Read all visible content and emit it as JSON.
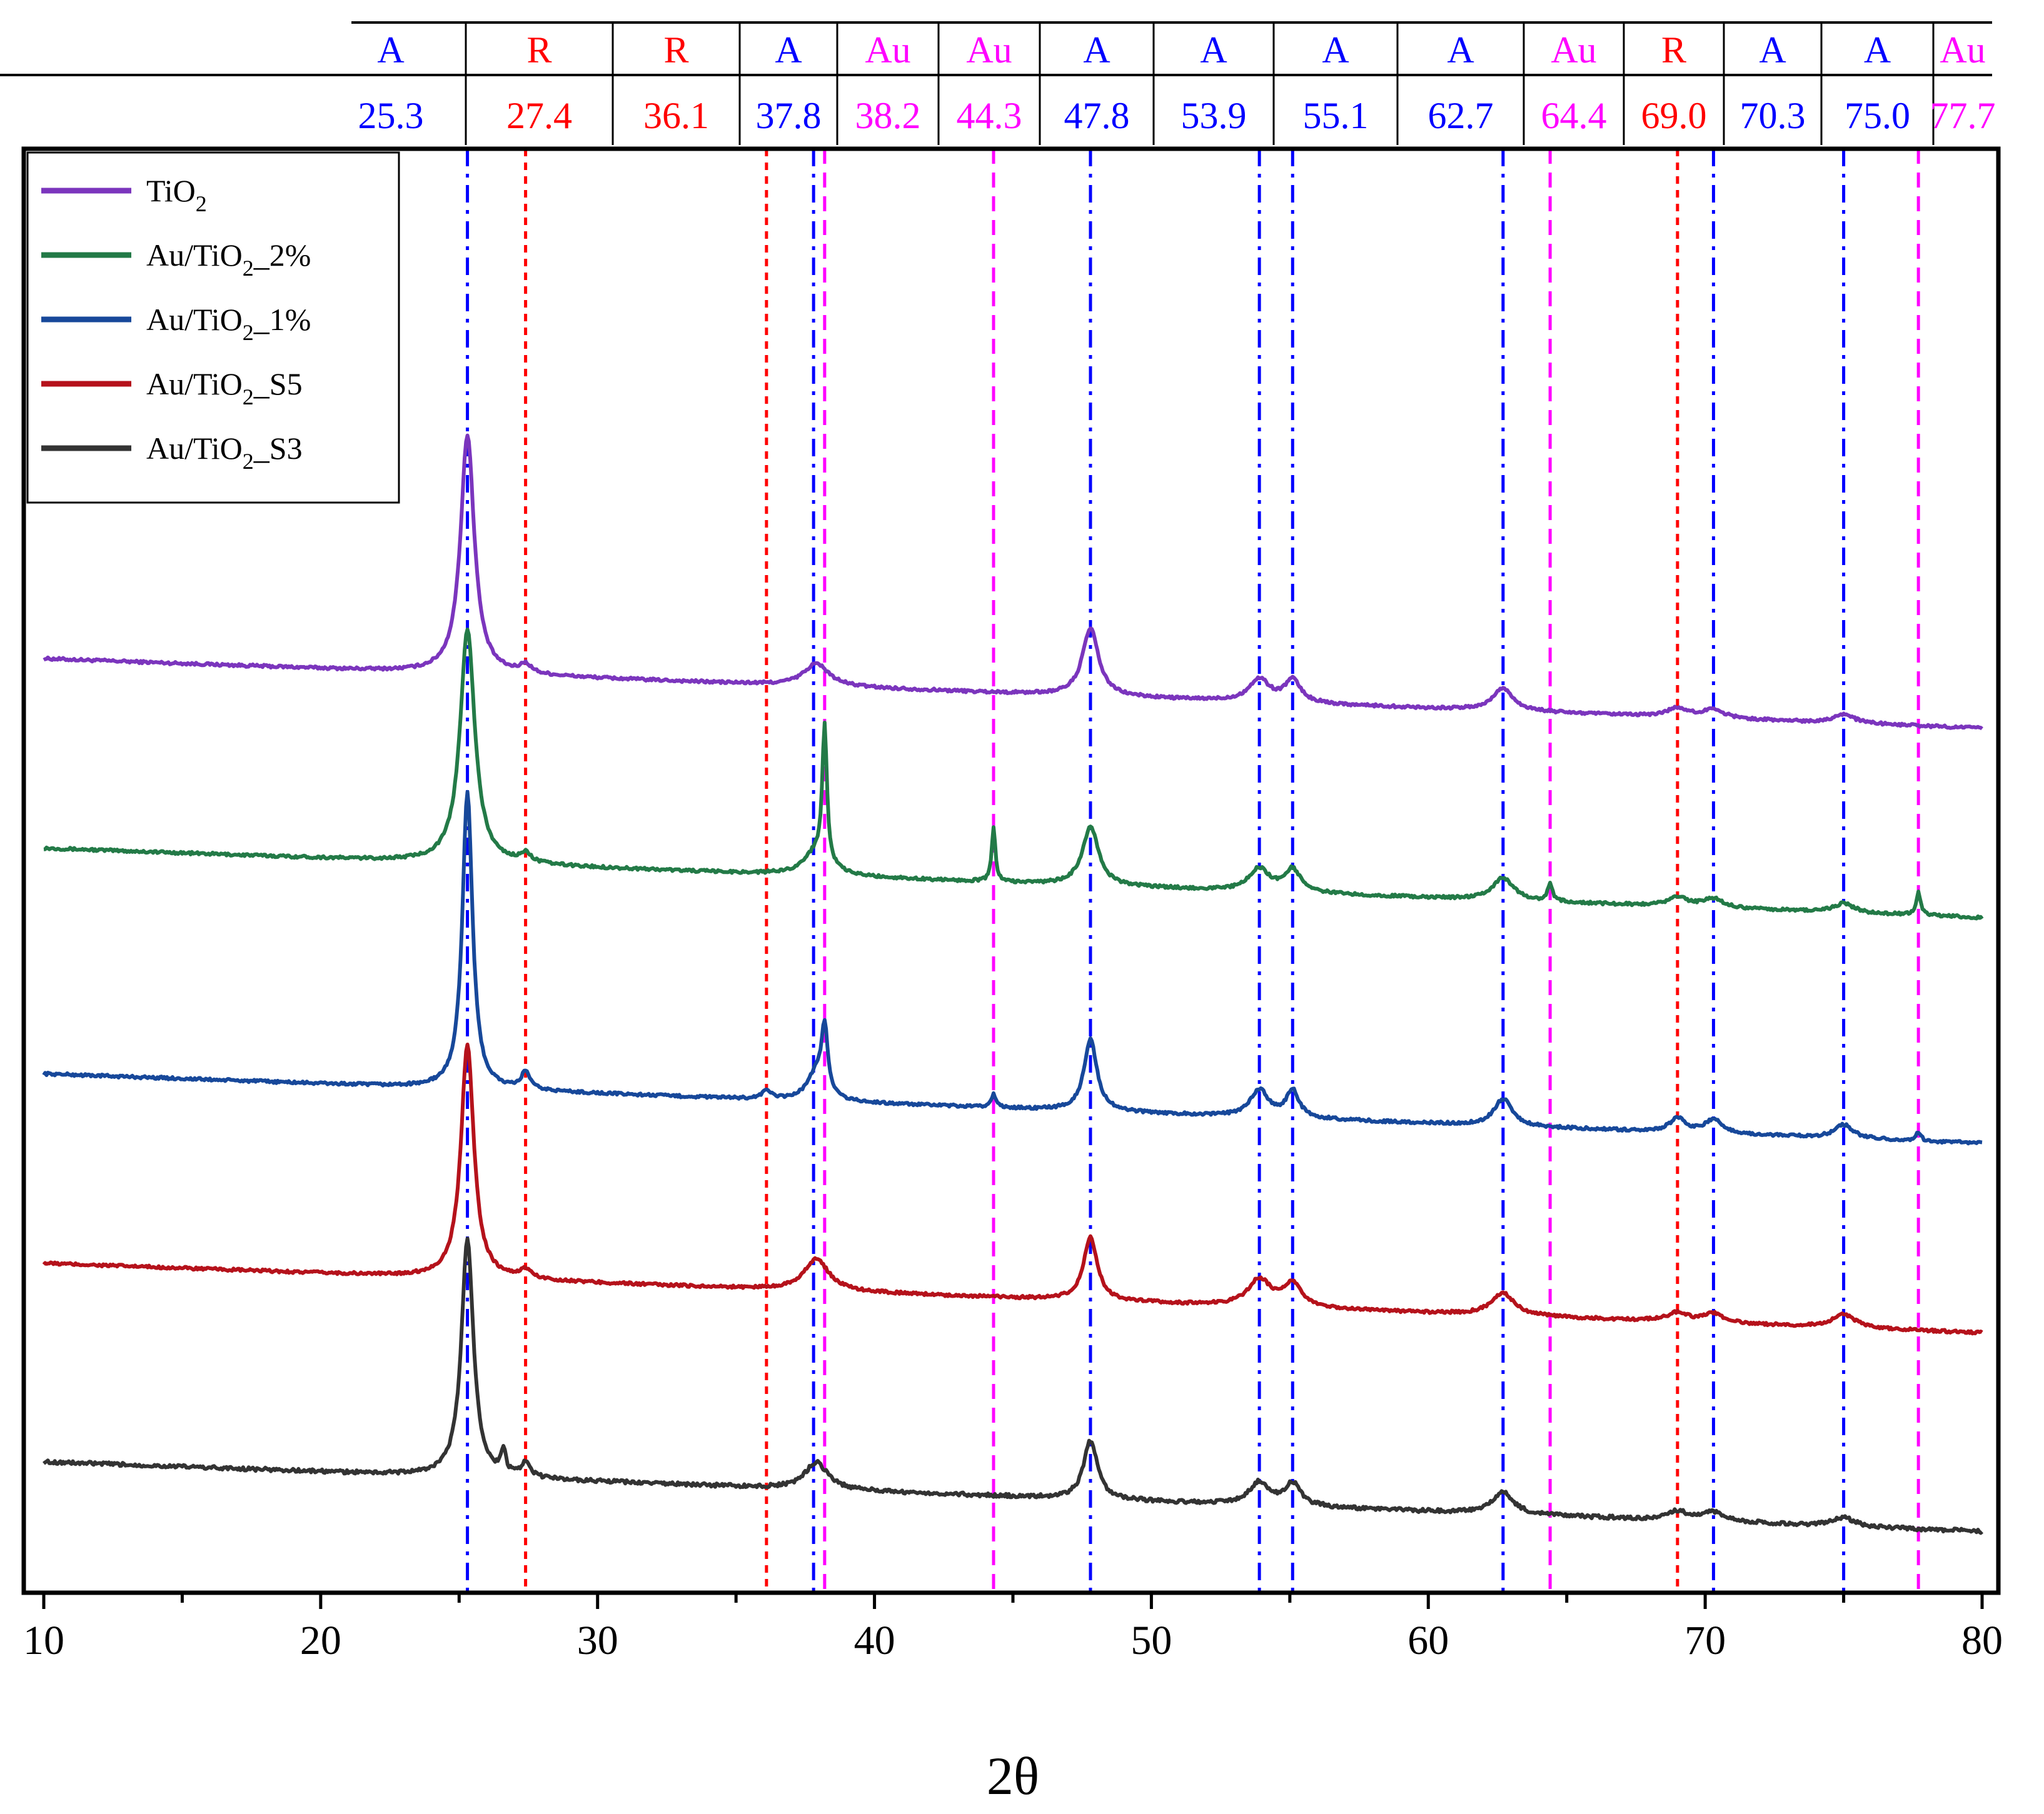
{
  "chart_data": {
    "type": "line",
    "title": "",
    "xlabel": "2θ",
    "ylabel": "",
    "xlim": [
      10,
      80
    ],
    "xticks": [
      10,
      20,
      30,
      40,
      50,
      60,
      70,
      80
    ],
    "grid": false,
    "legend_position": "top-left",
    "reference_lines": [
      {
        "phase": "A",
        "position": 25.3,
        "color": "#0000ff",
        "style": "dash-dot"
      },
      {
        "phase": "R",
        "position": 27.4,
        "color": "#ff0000",
        "style": "dotted"
      },
      {
        "phase": "R",
        "position": 36.1,
        "color": "#ff0000",
        "style": "dotted"
      },
      {
        "phase": "A",
        "position": 37.8,
        "color": "#0000ff",
        "style": "dash-dot"
      },
      {
        "phase": "Au",
        "position": 38.2,
        "color": "#ff00ff",
        "style": "dashed"
      },
      {
        "phase": "Au",
        "position": 44.3,
        "color": "#ff00ff",
        "style": "dashed"
      },
      {
        "phase": "A",
        "position": 47.8,
        "color": "#0000ff",
        "style": "dash-dot"
      },
      {
        "phase": "A",
        "position": 53.9,
        "color": "#0000ff",
        "style": "dash-dot"
      },
      {
        "phase": "A",
        "position": 55.1,
        "color": "#0000ff",
        "style": "dash-dot"
      },
      {
        "phase": "A",
        "position": 62.7,
        "color": "#0000ff",
        "style": "dash-dot"
      },
      {
        "phase": "Au",
        "position": 64.4,
        "color": "#ff00ff",
        "style": "dashed"
      },
      {
        "phase": "R",
        "position": 69.0,
        "color": "#ff0000",
        "style": "dotted"
      },
      {
        "phase": "A",
        "position": 70.3,
        "color": "#0000ff",
        "style": "dash-dot"
      },
      {
        "phase": "A",
        "position": 75.0,
        "color": "#0000ff",
        "style": "dash-dot"
      },
      {
        "phase": "Au",
        "position": 77.7,
        "color": "#ff00ff",
        "style": "dashed"
      }
    ],
    "reference_labels": [
      "25.3",
      "27.4",
      "36.1",
      "37.8",
      "38.2",
      "44.3",
      "47.8",
      "53.9",
      "55.1",
      "62.7",
      "64.4",
      "69.0",
      "70.3",
      "75.0",
      "77.7"
    ],
    "series": [
      {
        "name": "TiO2",
        "label_main": "TiO",
        "label_sub": "2",
        "label_suffix": "",
        "color": "#7b35bd",
        "baseline": 0.62,
        "slope": -0.0022,
        "noise": 0.006,
        "peaks": [
          [
            25.3,
            0.53,
            0.3
          ],
          [
            27.4,
            0.02,
            0.25
          ],
          [
            37.9,
            0.05,
            0.55
          ],
          [
            47.8,
            0.15,
            0.35
          ],
          [
            53.9,
            0.05,
            0.45
          ],
          [
            55.1,
            0.05,
            0.35
          ],
          [
            62.7,
            0.05,
            0.45
          ],
          [
            69.0,
            0.02,
            0.45
          ],
          [
            70.3,
            0.02,
            0.45
          ],
          [
            75.0,
            0.02,
            0.45
          ]
        ]
      },
      {
        "name": "Au/TiO2_2%",
        "label_main": "Au/TiO",
        "label_sub": "2",
        "label_suffix": "_2%",
        "color": "#237a47",
        "baseline": 0.2,
        "slope": -0.0022,
        "noise": 0.006,
        "peaks": [
          [
            25.3,
            0.52,
            0.32
          ],
          [
            27.4,
            0.02,
            0.25
          ],
          [
            37.9,
            0.05,
            0.55
          ],
          [
            38.2,
            0.3,
            0.1
          ],
          [
            44.3,
            0.12,
            0.08
          ],
          [
            47.8,
            0.13,
            0.35
          ],
          [
            53.9,
            0.05,
            0.45
          ],
          [
            55.1,
            0.05,
            0.35
          ],
          [
            62.7,
            0.05,
            0.45
          ],
          [
            64.4,
            0.04,
            0.1
          ],
          [
            69.0,
            0.02,
            0.45
          ],
          [
            70.3,
            0.02,
            0.45
          ],
          [
            75.0,
            0.02,
            0.45
          ],
          [
            77.7,
            0.05,
            0.1
          ]
        ]
      },
      {
        "name": "Au/TiO2_1%",
        "label_main": "Au/TiO",
        "label_sub": "2",
        "label_suffix": "_1%",
        "color": "#17489a",
        "baseline": -0.3,
        "slope": -0.0022,
        "noise": 0.006,
        "peaks": [
          [
            25.3,
            0.66,
            0.22
          ],
          [
            27.4,
            0.04,
            0.18
          ],
          [
            36.1,
            0.02,
            0.18
          ],
          [
            37.9,
            0.06,
            0.4
          ],
          [
            38.2,
            0.14,
            0.14
          ],
          [
            44.3,
            0.03,
            0.1
          ],
          [
            47.8,
            0.16,
            0.28
          ],
          [
            53.9,
            0.06,
            0.4
          ],
          [
            55.1,
            0.06,
            0.28
          ],
          [
            62.7,
            0.06,
            0.4
          ],
          [
            69.0,
            0.03,
            0.35
          ],
          [
            70.3,
            0.03,
            0.4
          ],
          [
            75.0,
            0.03,
            0.4
          ],
          [
            77.7,
            0.02,
            0.1
          ]
        ]
      },
      {
        "name": "Au/TiO2_S5",
        "label_main": "Au/TiO",
        "label_sub": "2",
        "label_suffix": "_S5",
        "color": "#b5121b",
        "baseline": -0.72,
        "slope": -0.0022,
        "noise": 0.006,
        "peaks": [
          [
            25.3,
            0.52,
            0.28
          ],
          [
            27.4,
            0.02,
            0.25
          ],
          [
            37.9,
            0.07,
            0.55
          ],
          [
            47.8,
            0.14,
            0.3
          ],
          [
            53.9,
            0.06,
            0.5
          ],
          [
            55.1,
            0.05,
            0.4
          ],
          [
            62.7,
            0.05,
            0.5
          ],
          [
            69.0,
            0.02,
            0.45
          ],
          [
            70.3,
            0.02,
            0.45
          ],
          [
            75.0,
            0.03,
            0.5
          ]
        ]
      },
      {
        "name": "Au/TiO2_S3",
        "label_main": "Au/TiO",
        "label_sub": "2",
        "label_suffix": "_S3",
        "color": "#333333",
        "baseline": -1.16,
        "slope": -0.0022,
        "noise": 0.008,
        "peaks": [
          [
            25.3,
            0.53,
            0.26
          ],
          [
            26.6,
            0.05,
            0.1
          ],
          [
            27.4,
            0.03,
            0.2
          ],
          [
            37.9,
            0.06,
            0.5
          ],
          [
            47.8,
            0.13,
            0.3
          ],
          [
            53.9,
            0.05,
            0.45
          ],
          [
            55.1,
            0.05,
            0.35
          ],
          [
            62.7,
            0.05,
            0.45
          ],
          [
            69.0,
            0.02,
            0.45
          ],
          [
            70.3,
            0.02,
            0.45
          ],
          [
            75.0,
            0.02,
            0.45
          ]
        ]
      }
    ]
  }
}
